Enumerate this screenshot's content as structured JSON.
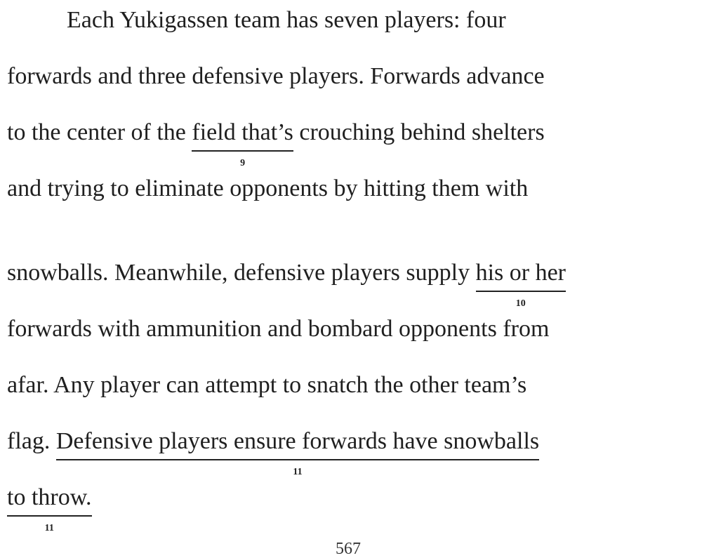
{
  "passage": {
    "line1": "Each Yukigassen team has seven players: four",
    "line2": "forwards and three defensive players. Forwards advance",
    "line3_pre": "to the center of the ",
    "line3_ul": "field that’s",
    "line3_post": " crouching behind shelters",
    "line3_num": "9",
    "line4": "and trying to eliminate opponents by hitting them with",
    "line5_pre": "snowballs. Meanwhile, defensive players supply ",
    "line5_ul": "his or her",
    "line5_num": "10",
    "line6": "forwards with ammunition and bombard opponents from",
    "line7": "afar. Any player can attempt to snatch the other team’s",
    "line8_pre": "flag. ",
    "line8_ul": "Defensive players ensure forwards have snowballs",
    "line8_num": "11",
    "line9_ul": "to throw.",
    "line9_num": "11"
  },
  "footer": {
    "page_number": "567"
  }
}
